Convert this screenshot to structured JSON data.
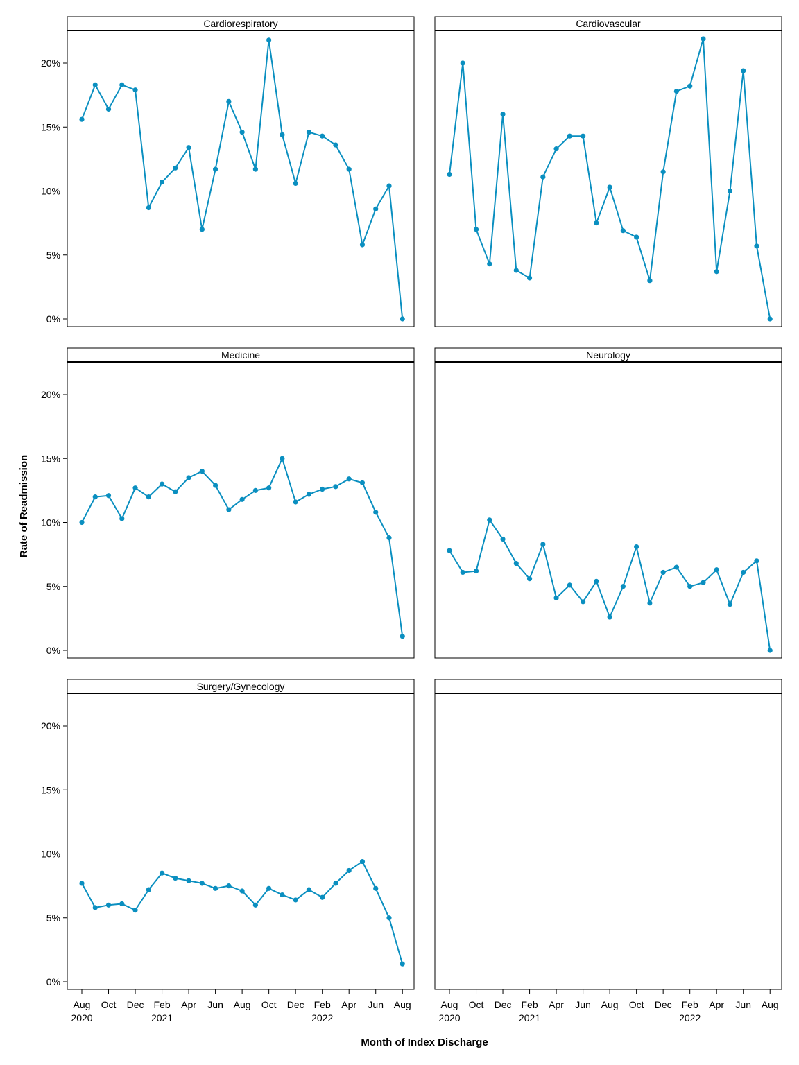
{
  "chart_data": {
    "type": "line",
    "layout": "faceted-grid",
    "ylabel": "Rate of Readmission",
    "xlabel": "Month of Index Discharge",
    "ylim": [
      0,
      22.5
    ],
    "yticks": [
      0,
      5,
      10,
      15,
      20
    ],
    "ytick_labels": [
      "0%",
      "5%",
      "10%",
      "15%",
      "20%"
    ],
    "x_months": [
      "2020-08",
      "2020-09",
      "2020-10",
      "2020-11",
      "2020-12",
      "2021-01",
      "2021-02",
      "2021-03",
      "2021-04",
      "2021-05",
      "2021-06",
      "2021-07",
      "2021-08",
      "2021-09",
      "2021-10",
      "2021-11",
      "2021-12",
      "2022-01",
      "2022-02",
      "2022-03",
      "2022-04",
      "2022-05",
      "2022-06",
      "2022-07",
      "2022-08"
    ],
    "xticks": [
      {
        "month": "Aug",
        "year": "2020"
      },
      {
        "month": "Oct",
        "year": ""
      },
      {
        "month": "Dec",
        "year": ""
      },
      {
        "month": "Feb",
        "year": "2021"
      },
      {
        "month": "Apr",
        "year": ""
      },
      {
        "month": "Jun",
        "year": ""
      },
      {
        "month": "Aug",
        "year": ""
      },
      {
        "month": "Oct",
        "year": ""
      },
      {
        "month": "Dec",
        "year": ""
      },
      {
        "month": "Feb",
        "year": "2022"
      },
      {
        "month": "Apr",
        "year": ""
      },
      {
        "month": "Jun",
        "year": ""
      },
      {
        "month": "Aug",
        "year": ""
      }
    ],
    "series_color": "#0a8fc0",
    "grid": false,
    "panels": [
      {
        "name": "Cardiorespiratory",
        "values": [
          15.6,
          18.3,
          16.4,
          18.3,
          17.9,
          8.7,
          10.7,
          11.8,
          13.4,
          7.0,
          11.7,
          17.0,
          14.6,
          11.7,
          21.8,
          14.4,
          10.6,
          14.6,
          14.3,
          13.6,
          11.7,
          5.8,
          8.6,
          10.4,
          0.0
        ]
      },
      {
        "name": "Cardiovascular",
        "values": [
          11.3,
          20.0,
          7.0,
          4.3,
          16.0,
          3.8,
          3.2,
          11.1,
          13.3,
          14.3,
          14.3,
          7.5,
          10.3,
          6.9,
          6.4,
          3.0,
          11.5,
          17.8,
          18.2,
          21.9,
          3.7,
          10.0,
          19.4,
          5.7,
          0.0
        ]
      },
      {
        "name": "Medicine",
        "values": [
          10.0,
          12.0,
          12.1,
          10.3,
          12.7,
          12.0,
          13.0,
          12.4,
          13.5,
          14.0,
          12.9,
          11.0,
          11.8,
          12.5,
          12.7,
          15.0,
          11.6,
          12.2,
          12.6,
          12.8,
          13.4,
          13.1,
          10.8,
          8.8,
          1.1
        ]
      },
      {
        "name": "Neurology",
        "values": [
          7.8,
          6.1,
          6.2,
          10.2,
          8.7,
          6.8,
          5.6,
          8.3,
          4.1,
          5.1,
          3.8,
          5.4,
          2.6,
          5.0,
          8.1,
          3.7,
          6.1,
          6.5,
          5.0,
          5.3,
          6.3,
          3.6,
          6.1,
          7.0,
          0.0
        ]
      },
      {
        "name": "Surgery/Gynecology",
        "values": [
          7.7,
          5.8,
          6.0,
          6.1,
          5.6,
          7.2,
          8.5,
          8.1,
          7.9,
          7.7,
          7.3,
          7.5,
          7.1,
          6.0,
          7.3,
          6.8,
          6.4,
          7.2,
          6.6,
          7.7,
          8.7,
          9.4,
          7.3,
          5.0,
          1.4
        ]
      },
      {
        "name": "",
        "values": []
      }
    ]
  }
}
